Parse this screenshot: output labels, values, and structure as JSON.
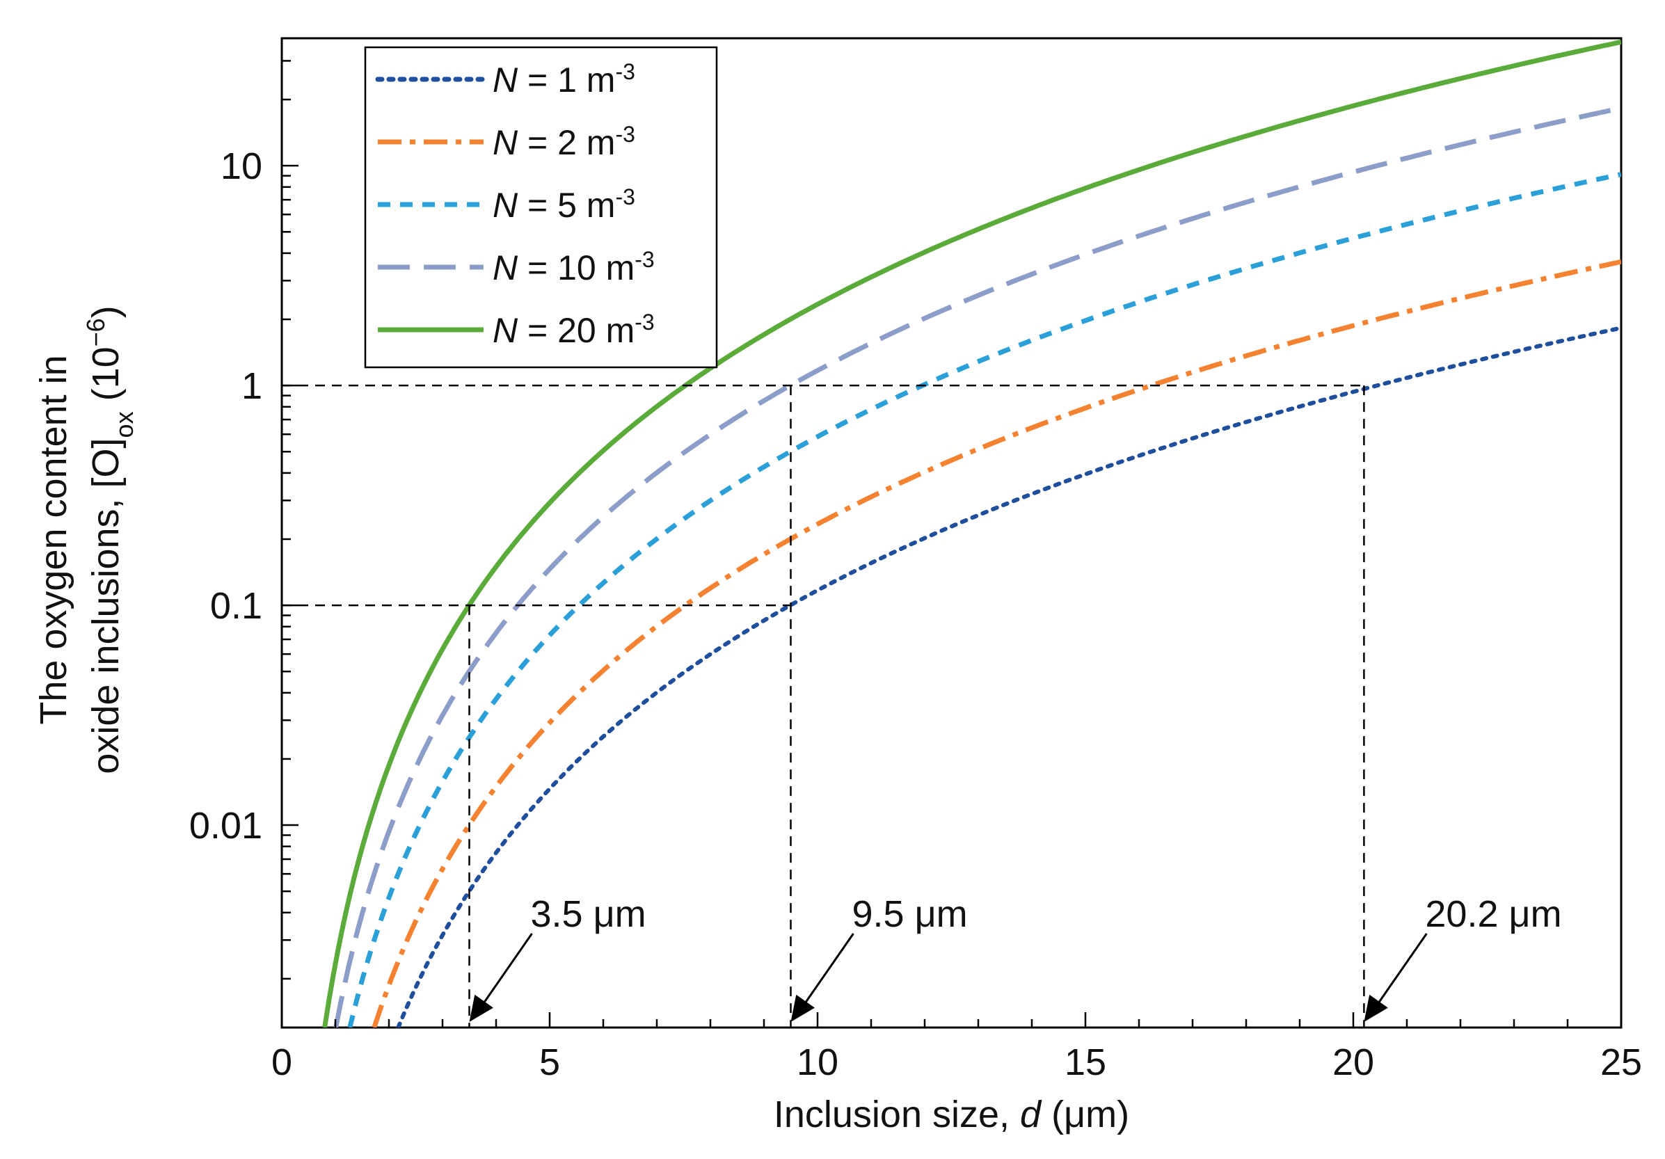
{
  "chart_data": {
    "type": "line",
    "xlabel": {
      "prefix": "Inclusion size, ",
      "var": "d",
      "suffix": " (μm)"
    },
    "ylabel": {
      "line1": "The oxygen content in",
      "line2_prefix": "oxide inclusions, [O]",
      "line2_sub": "ox",
      "line2_suffix": " (10",
      "line2_sup": "−6",
      "line2_end": ")"
    },
    "xlim": [
      0,
      25
    ],
    "ylim": [
      0.0012,
      38
    ],
    "yscale": "log",
    "x_ticks": [
      0,
      5,
      10,
      15,
      20,
      25
    ],
    "x_tick_labels": [
      "0",
      "5",
      "10",
      "15",
      "20",
      "25"
    ],
    "y_ticks": [
      0.01,
      0.1,
      1,
      10
    ],
    "y_tick_labels": [
      "0.01",
      "0.1",
      "1",
      "10"
    ],
    "grid": false,
    "legend_position": "top-left",
    "model": "y = k * N * d^3",
    "series": [
      {
        "name_var": "N",
        "name_eq": " = 1 m",
        "name_sup": "-3",
        "N": 1,
        "k": 0.000117,
        "color": "#1f4e9c",
        "style": "dotted"
      },
      {
        "name_var": "N",
        "name_eq": " = 2 m",
        "name_sup": "-3",
        "N": 2,
        "k": 0.000117,
        "color": "#f58231",
        "style": "dashdot"
      },
      {
        "name_var": "N",
        "name_eq": " = 5 m",
        "name_sup": "-3",
        "N": 5,
        "k": 0.000117,
        "color": "#2a9fd8",
        "style": "shortdash"
      },
      {
        "name_var": "N",
        "name_eq": " = 10 m",
        "name_sup": "-3",
        "N": 10,
        "k": 0.000117,
        "color": "#8c9dc9",
        "style": "longdash"
      },
      {
        "name_var": "N",
        "name_eq": " = 20 m",
        "name_sup": "-3",
        "N": 20,
        "k": 0.000117,
        "color": "#5aab3a",
        "style": "solid"
      }
    ],
    "reference_lines": {
      "horizontal": [
        0.1,
        1
      ],
      "vertical": [
        3.5,
        9.5,
        20.2
      ]
    },
    "annotations": [
      {
        "text": "3.5 μm",
        "x": 3.5
      },
      {
        "text": "9.5 μm",
        "x": 9.5
      },
      {
        "text": "20.2 μm",
        "x": 20.2
      }
    ]
  }
}
